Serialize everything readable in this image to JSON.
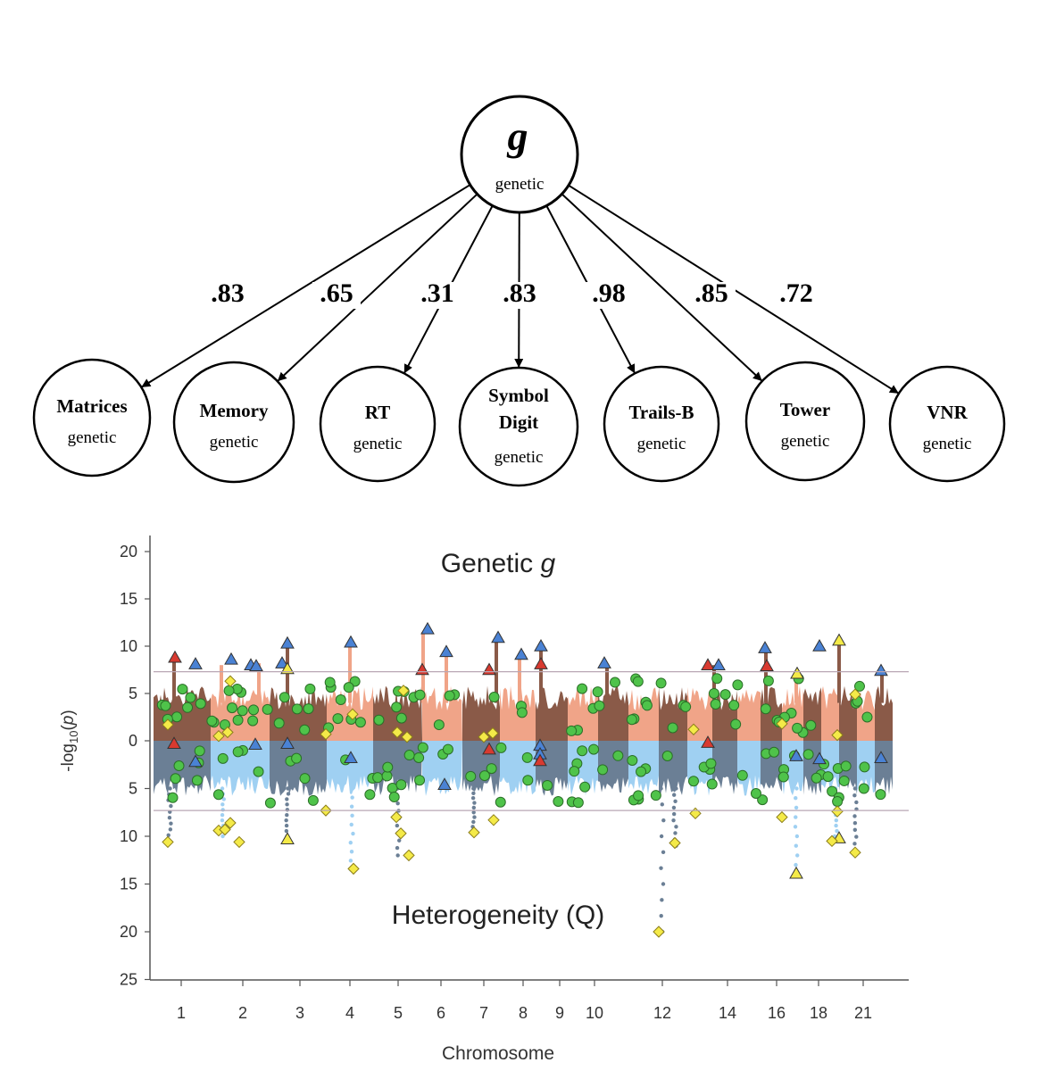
{
  "factor": {
    "symbol": "g",
    "subtitle": "genetic"
  },
  "indicators": [
    {
      "lines": [
        "Matrices"
      ],
      "sub": "genetic",
      "loading": ".83"
    },
    {
      "lines": [
        "Memory"
      ],
      "sub": "genetic",
      "loading": ".65"
    },
    {
      "lines": [
        "RT"
      ],
      "sub": "genetic",
      "loading": ".31"
    },
    {
      "lines": [
        "Symbol",
        "Digit"
      ],
      "sub": "genetic",
      "loading": ".83"
    },
    {
      "lines": [
        "Trails-B"
      ],
      "sub": "genetic",
      "loading": ".98"
    },
    {
      "lines": [
        "Tower"
      ],
      "sub": "genetic",
      "loading": ".85"
    },
    {
      "lines": [
        "VNR"
      ],
      "sub": "genetic",
      "loading": ".72"
    }
  ],
  "chart_data": {
    "type": "scatter",
    "title_top_prefix": "Genetic ",
    "title_top_italic": "g",
    "title_bottom": "Heterogeneity (Q)",
    "ylabel": {
      "prefix": "-log",
      "sub": "10",
      "mid": "(",
      "italic": "p",
      "suffix": ")"
    },
    "xlabel": "Chromosome",
    "y_ticks_top": [
      20,
      15,
      10,
      5
    ],
    "y_tick_zero": 0,
    "y_ticks_bottom": [
      5,
      10,
      15,
      20,
      25
    ],
    "y_range_top": [
      0,
      21
    ],
    "y_range_bottom": [
      0,
      25
    ],
    "threshold": 7.3,
    "x_tick_labels": [
      "1",
      "2",
      "3",
      "4",
      "5",
      "6",
      "7",
      "8",
      "9",
      "10",
      "12",
      "14",
      "16",
      "18",
      "21"
    ],
    "colors": {
      "top_dark": "#8a5a48",
      "top_light": "#f0a488",
      "bottom_dark": "#6b7f95",
      "bottom_light": "#9fd0f2",
      "marker_green": "#4fc34a",
      "marker_blue": "#4a82d4",
      "marker_red": "#d83a30",
      "marker_yellow": "#f4ea48"
    }
  }
}
